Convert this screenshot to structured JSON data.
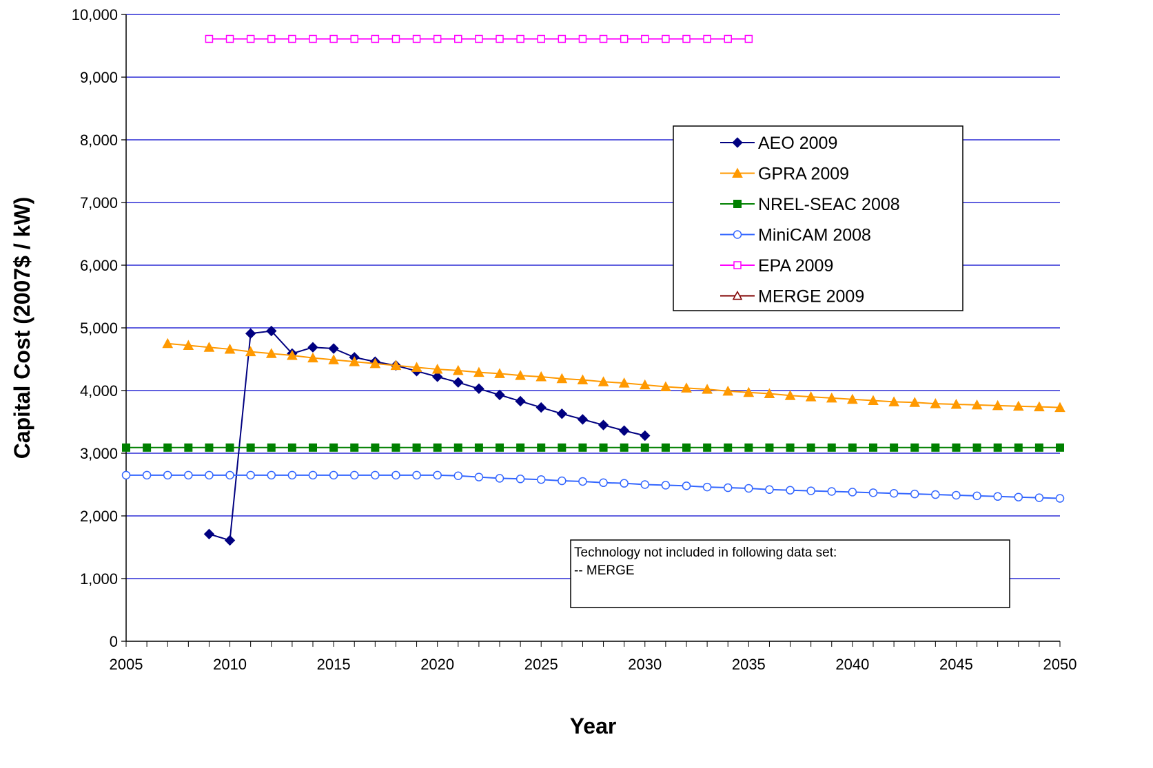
{
  "chart_data": {
    "type": "line",
    "xlabel": "Year",
    "ylabel": "Capital Cost (2007$ / kW)",
    "xlim": [
      2005,
      2050
    ],
    "ylim": [
      0,
      10000
    ],
    "x_ticks": [
      "2005",
      "2010",
      "2015",
      "2020",
      "2025",
      "2030",
      "2035",
      "2040",
      "2045",
      "2050"
    ],
    "y_ticks": [
      "0",
      "1,000",
      "2,000",
      "3,000",
      "4,000",
      "5,000",
      "6,000",
      "7,000",
      "8,000",
      "9,000",
      "10,000"
    ],
    "grid": "horizontal",
    "legend_position": "upper-right",
    "annotation": {
      "line1": "Technology not included in following data set:",
      "line2": "-- MERGE"
    },
    "series": [
      {
        "name": "AEO 2009",
        "color": "#000080",
        "marker": "diamond-filled",
        "x": [
          2009,
          2010,
          2011,
          2012,
          2013,
          2014,
          2015,
          2016,
          2017,
          2018,
          2019,
          2020,
          2021,
          2022,
          2023,
          2024,
          2025,
          2026,
          2027,
          2028,
          2029,
          2030
        ],
        "y": [
          1710,
          1610,
          4910,
          4950,
          4590,
          4690,
          4670,
          4530,
          4460,
          4400,
          4310,
          4220,
          4130,
          4030,
          3930,
          3830,
          3730,
          3630,
          3540,
          3450,
          3360,
          3280
        ]
      },
      {
        "name": "GPRA 2009",
        "color": "#FF9900",
        "marker": "triangle-filled",
        "x": [
          2007,
          2008,
          2009,
          2010,
          2011,
          2012,
          2013,
          2014,
          2015,
          2016,
          2017,
          2018,
          2019,
          2020,
          2021,
          2022,
          2023,
          2024,
          2025,
          2026,
          2027,
          2028,
          2029,
          2030,
          2031,
          2032,
          2033,
          2034,
          2035,
          2036,
          2037,
          2038,
          2039,
          2040,
          2041,
          2042,
          2043,
          2044,
          2045,
          2046,
          2047,
          2048,
          2049,
          2050
        ],
        "y": [
          4750,
          4720,
          4690,
          4660,
          4620,
          4590,
          4560,
          4520,
          4490,
          4460,
          4430,
          4400,
          4370,
          4340,
          4320,
          4290,
          4270,
          4240,
          4220,
          4190,
          4170,
          4140,
          4120,
          4090,
          4060,
          4040,
          4020,
          3990,
          3970,
          3950,
          3920,
          3900,
          3880,
          3860,
          3840,
          3820,
          3810,
          3790,
          3780,
          3770,
          3760,
          3750,
          3740,
          3730
        ]
      },
      {
        "name": "NREL-SEAC 2008",
        "color": "#008000",
        "marker": "square-filled",
        "x": [
          2005,
          2006,
          2007,
          2008,
          2009,
          2010,
          2011,
          2012,
          2013,
          2014,
          2015,
          2016,
          2017,
          2018,
          2019,
          2020,
          2021,
          2022,
          2023,
          2024,
          2025,
          2026,
          2027,
          2028,
          2029,
          2030,
          2031,
          2032,
          2033,
          2034,
          2035,
          2036,
          2037,
          2038,
          2039,
          2040,
          2041,
          2042,
          2043,
          2044,
          2045,
          2046,
          2047,
          2048,
          2049,
          2050
        ],
        "y": [
          3090,
          3090,
          3090,
          3090,
          3090,
          3090,
          3090,
          3090,
          3090,
          3090,
          3090,
          3090,
          3090,
          3090,
          3090,
          3090,
          3090,
          3090,
          3090,
          3090,
          3090,
          3090,
          3090,
          3090,
          3090,
          3090,
          3090,
          3090,
          3090,
          3090,
          3090,
          3090,
          3090,
          3090,
          3090,
          3090,
          3090,
          3090,
          3090,
          3090,
          3090,
          3090,
          3090,
          3090,
          3090,
          3090
        ]
      },
      {
        "name": "MiniCAM 2008",
        "color": "#3366FF",
        "marker": "circle-open",
        "x": [
          2005,
          2006,
          2007,
          2008,
          2009,
          2010,
          2011,
          2012,
          2013,
          2014,
          2015,
          2016,
          2017,
          2018,
          2019,
          2020,
          2021,
          2022,
          2023,
          2024,
          2025,
          2026,
          2027,
          2028,
          2029,
          2030,
          2031,
          2032,
          2033,
          2034,
          2035,
          2036,
          2037,
          2038,
          2039,
          2040,
          2041,
          2042,
          2043,
          2044,
          2045,
          2046,
          2047,
          2048,
          2049,
          2050
        ],
        "y": [
          2650,
          2650,
          2650,
          2650,
          2650,
          2650,
          2650,
          2650,
          2650,
          2650,
          2650,
          2650,
          2650,
          2650,
          2650,
          2650,
          2640,
          2620,
          2600,
          2590,
          2580,
          2560,
          2550,
          2530,
          2520,
          2500,
          2490,
          2480,
          2460,
          2450,
          2440,
          2420,
          2410,
          2400,
          2390,
          2380,
          2370,
          2360,
          2350,
          2340,
          2330,
          2320,
          2310,
          2300,
          2290,
          2280
        ]
      },
      {
        "name": "EPA 2009",
        "color": "#FF00FF",
        "marker": "square-open",
        "x": [
          2009,
          2010,
          2011,
          2012,
          2013,
          2014,
          2015,
          2016,
          2017,
          2018,
          2019,
          2020,
          2021,
          2022,
          2023,
          2024,
          2025,
          2026,
          2027,
          2028,
          2029,
          2030,
          2031,
          2032,
          2033,
          2034,
          2035
        ],
        "y": [
          9610,
          9610,
          9610,
          9610,
          9610,
          9610,
          9610,
          9610,
          9610,
          9610,
          9610,
          9610,
          9610,
          9610,
          9610,
          9610,
          9610,
          9610,
          9610,
          9610,
          9610,
          9610,
          9610,
          9610,
          9610,
          9610,
          9610
        ]
      },
      {
        "name": "MERGE 2009",
        "color": "#800000",
        "marker": "triangle-open",
        "x": [],
        "y": []
      }
    ]
  }
}
